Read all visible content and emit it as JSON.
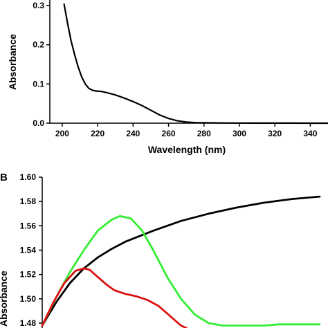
{
  "chart_data": [
    {
      "type": "line",
      "panel_label": "",
      "xlabel": "Wavelength (nm)",
      "ylabel": "Absorbance",
      "xlim": [
        193,
        350
      ],
      "ylim": [
        0.0,
        0.3
      ],
      "x_ticks": [
        200,
        220,
        240,
        260,
        280,
        300,
        320,
        340
      ],
      "y_ticks": [
        0.0,
        0.1,
        0.2,
        0.3
      ],
      "x_tick_labels": [
        "200",
        "220",
        "240",
        "260",
        "280",
        "300",
        "320",
        "340"
      ],
      "y_tick_labels": [
        "0.0",
        "0.1",
        "0.2",
        "0.3"
      ],
      "grid": false,
      "series": [
        {
          "color": "#000000",
          "x": [
            201,
            203,
            205,
            207,
            209,
            211,
            213,
            215,
            217,
            219,
            222,
            226,
            230,
            235,
            240,
            245,
            250,
            255,
            260,
            265,
            270,
            275,
            280,
            290,
            300,
            310,
            320,
            330,
            340,
            350
          ],
          "y": [
            0.305,
            0.255,
            0.21,
            0.175,
            0.143,
            0.118,
            0.1,
            0.089,
            0.084,
            0.082,
            0.081,
            0.077,
            0.072,
            0.064,
            0.055,
            0.045,
            0.033,
            0.021,
            0.012,
            0.006,
            0.003,
            0.0015,
            0.001,
            0.0005,
            0.0003,
            0.0002,
            0.0001,
            0.0001,
            0.0,
            0.0
          ]
        }
      ]
    },
    {
      "type": "line",
      "panel_label": "B",
      "xlabel": "",
      "ylabel": "Absorbance",
      "ylim": [
        1.48,
        1.6
      ],
      "y_ticks": [
        1.48,
        1.5,
        1.52,
        1.54,
        1.56,
        1.58,
        1.6
      ],
      "y_tick_labels": [
        "1.48",
        "1.50",
        "1.52",
        "1.54",
        "1.56",
        "1.58",
        "1.60"
      ],
      "xlim": [
        0,
        100
      ],
      "grid": false,
      "series": [
        {
          "color": "#000000",
          "x": [
            0,
            5,
            10,
            15,
            20,
            25,
            30,
            40,
            50,
            60,
            70,
            80,
            90,
            100
          ],
          "y": [
            1.478,
            1.497,
            1.513,
            1.525,
            1.534,
            1.541,
            1.547,
            1.556,
            1.564,
            1.57,
            1.575,
            1.579,
            1.582,
            1.584
          ]
        },
        {
          "color": "#33ee33",
          "x": [
            0,
            5,
            10,
            15,
            20,
            25,
            28,
            32,
            36,
            40,
            45,
            50,
            55,
            60,
            65,
            70,
            75,
            80,
            85,
            90,
            95,
            100
          ],
          "y": [
            1.478,
            1.501,
            1.522,
            1.54,
            1.556,
            1.565,
            1.568,
            1.566,
            1.556,
            1.54,
            1.518,
            1.5,
            1.487,
            1.48,
            1.478,
            1.478,
            1.478,
            1.478,
            1.479,
            1.479,
            1.479,
            1.479
          ]
        },
        {
          "color": "#dd1111",
          "x": [
            0,
            4,
            8,
            12,
            15,
            17,
            20,
            23,
            26,
            30,
            34,
            38,
            42,
            45,
            48,
            50,
            52
          ],
          "y": [
            1.478,
            1.497,
            1.513,
            1.523,
            1.525,
            1.524,
            1.518,
            1.512,
            1.507,
            1.504,
            1.502,
            1.499,
            1.494,
            1.488,
            1.482,
            1.478,
            1.476
          ]
        }
      ]
    }
  ]
}
